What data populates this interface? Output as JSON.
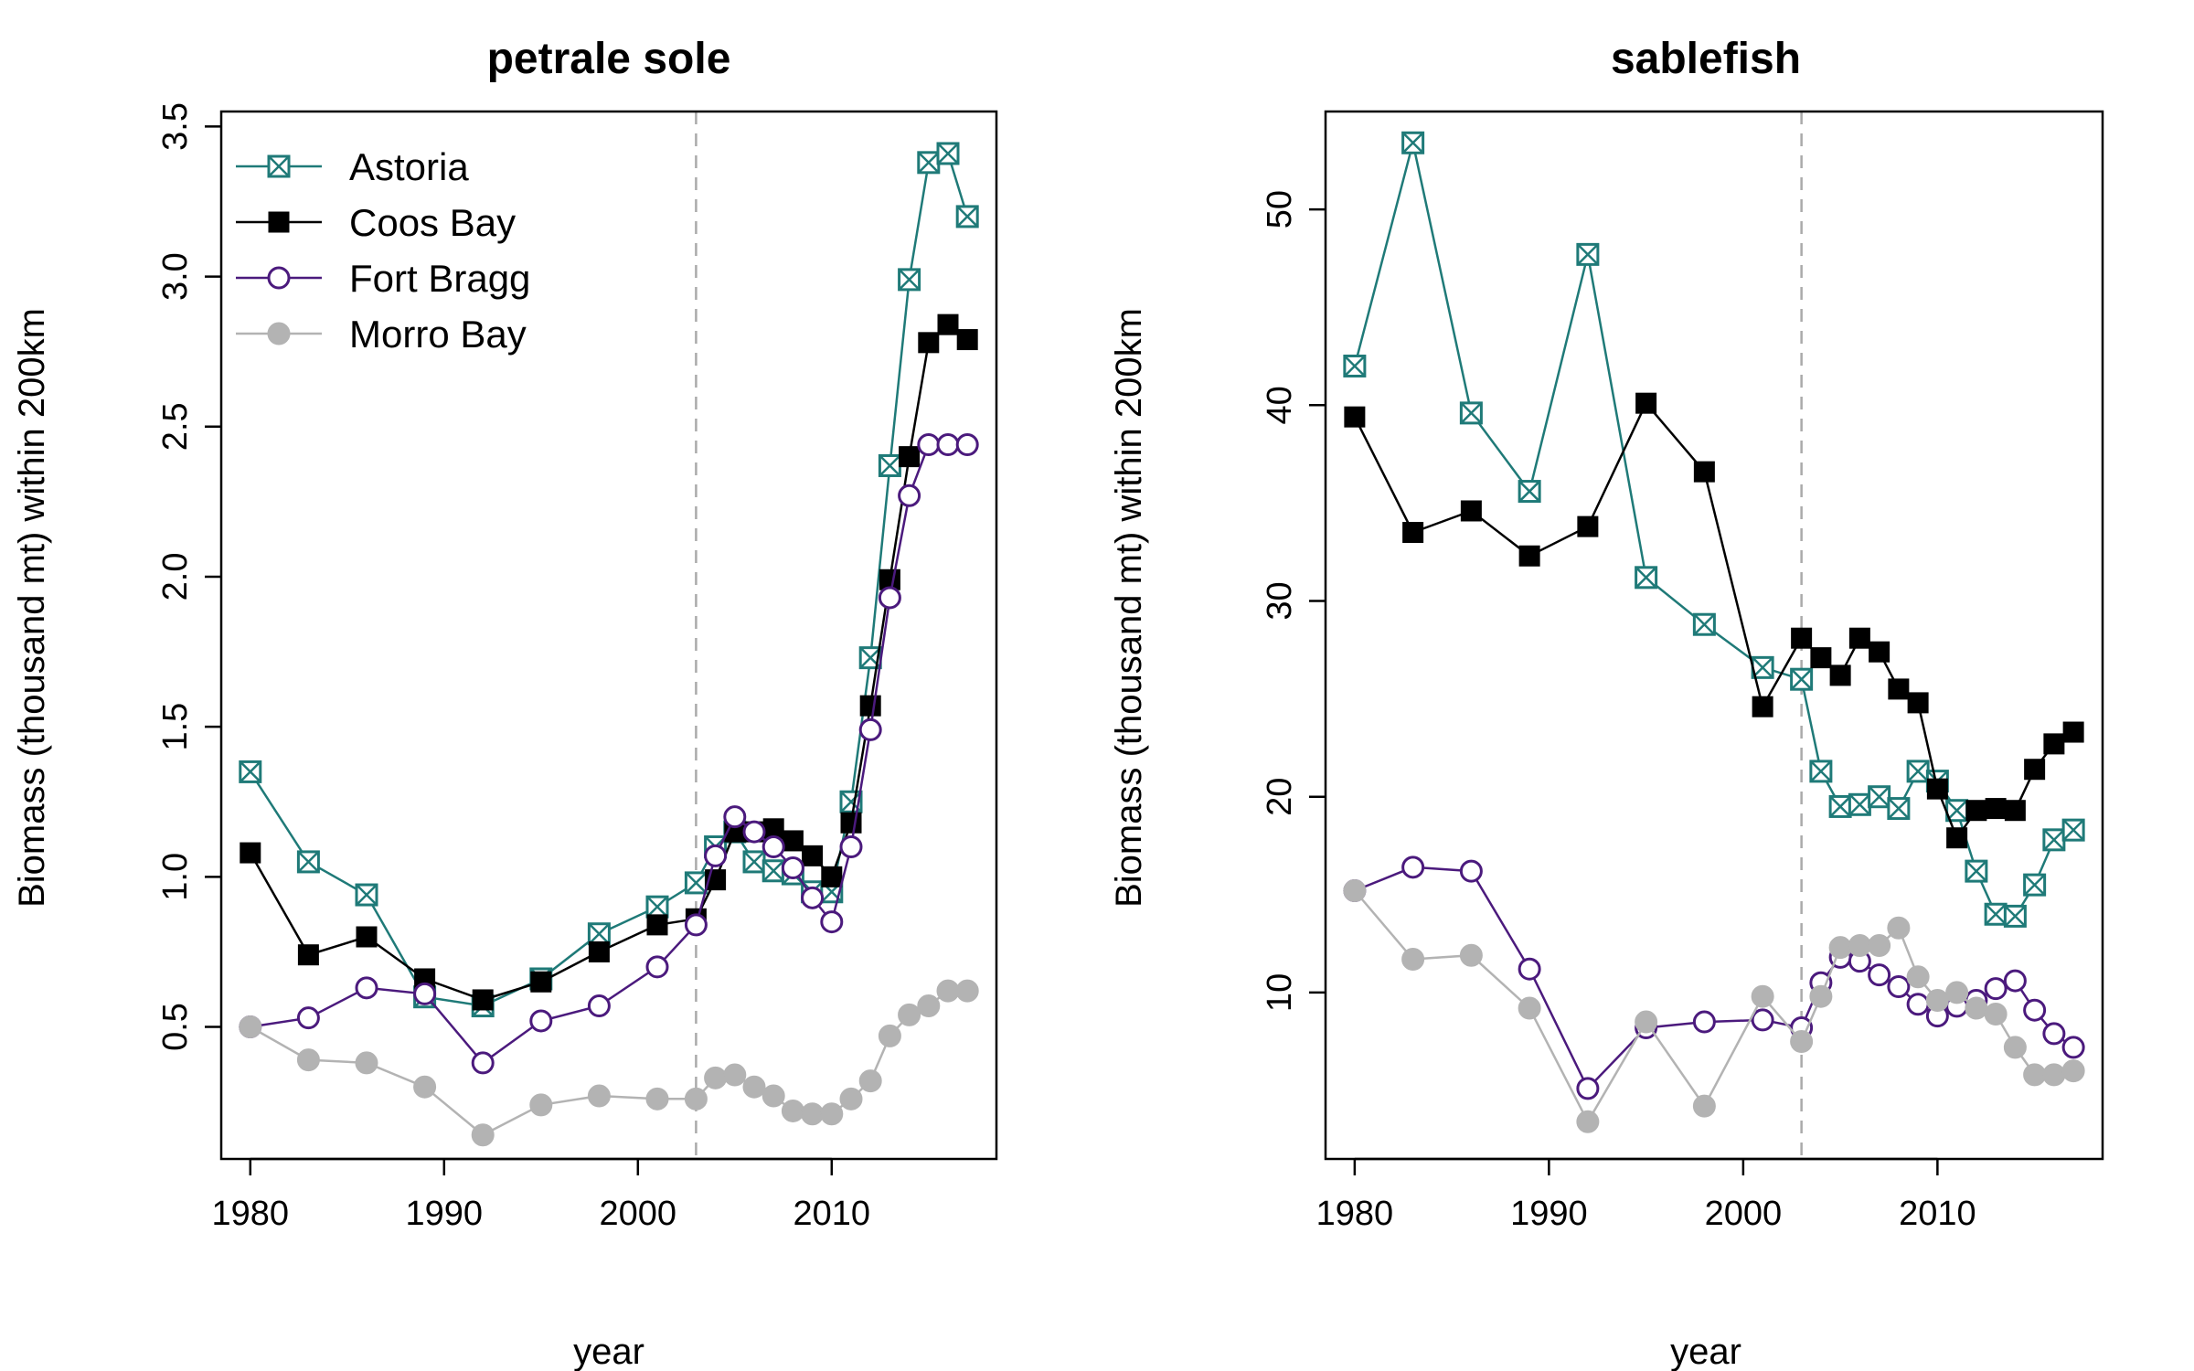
{
  "chart_data": [
    {
      "type": "line",
      "title": "petrale sole",
      "xlabel": "year",
      "ylabel": "Biomass (thousand mt) within 200km",
      "xlim": [
        1978.5,
        2018.5
      ],
      "ylim": [
        0.06,
        3.55
      ],
      "xticks": [
        1980,
        1990,
        2000,
        2010
      ],
      "yticks": [
        0.5,
        1.0,
        1.5,
        2.0,
        2.5,
        3.0,
        3.5
      ],
      "ytick_labels": [
        "0.5",
        "1.0",
        "1.5",
        "2.0",
        "2.5",
        "3.0",
        "3.5"
      ],
      "vline": 2003,
      "legend": {
        "placement": "top-left",
        "show": true
      },
      "series": [
        {
          "name": "Astoria",
          "color": "#1f7a78",
          "marker": "square-x",
          "x": [
            1980,
            1983,
            1986,
            1989,
            1992,
            1995,
            1998,
            2001,
            2003,
            2004,
            2005,
            2006,
            2007,
            2008,
            2009,
            2010,
            2011,
            2012,
            2013,
            2014,
            2015,
            2016,
            2017
          ],
          "y": [
            1.35,
            1.05,
            0.94,
            0.6,
            0.57,
            0.66,
            0.81,
            0.9,
            0.98,
            1.1,
            1.15,
            1.05,
            1.02,
            1.01,
            0.95,
            0.95,
            1.25,
            1.73,
            2.37,
            2.99,
            3.38,
            3.41,
            3.2
          ]
        },
        {
          "name": "Coos Bay",
          "color": "#000000",
          "marker": "square-filled",
          "x": [
            1980,
            1983,
            1986,
            1989,
            1992,
            1995,
            1998,
            2001,
            2003,
            2004,
            2005,
            2006,
            2007,
            2008,
            2009,
            2010,
            2011,
            2012,
            2013,
            2014,
            2015,
            2016,
            2017
          ],
          "y": [
            1.08,
            0.74,
            0.8,
            0.66,
            0.59,
            0.65,
            0.75,
            0.84,
            0.86,
            0.99,
            1.15,
            1.15,
            1.16,
            1.12,
            1.07,
            1.0,
            1.18,
            1.57,
            1.99,
            2.4,
            2.78,
            2.84,
            2.79
          ]
        },
        {
          "name": "Fort Bragg",
          "color": "#4b1a7d",
          "marker": "circle-open",
          "x": [
            1980,
            1983,
            1986,
            1989,
            1992,
            1995,
            1998,
            2001,
            2003,
            2004,
            2005,
            2006,
            2007,
            2008,
            2009,
            2010,
            2011,
            2012,
            2013,
            2014,
            2015,
            2016,
            2017
          ],
          "y": [
            0.5,
            0.53,
            0.63,
            0.61,
            0.38,
            0.52,
            0.57,
            0.7,
            0.84,
            1.07,
            1.2,
            1.15,
            1.1,
            1.03,
            0.93,
            0.85,
            1.1,
            1.49,
            1.93,
            2.27,
            2.44,
            2.44,
            2.44
          ]
        },
        {
          "name": "Morro Bay",
          "color": "#b3b3b3",
          "marker": "circle-filled",
          "x": [
            1980,
            1983,
            1986,
            1989,
            1992,
            1995,
            1998,
            2001,
            2003,
            2004,
            2005,
            2006,
            2007,
            2008,
            2009,
            2010,
            2011,
            2012,
            2013,
            2014,
            2015,
            2016,
            2017
          ],
          "y": [
            0.5,
            0.39,
            0.38,
            0.3,
            0.14,
            0.24,
            0.27,
            0.26,
            0.26,
            0.33,
            0.34,
            0.3,
            0.27,
            0.22,
            0.21,
            0.21,
            0.26,
            0.32,
            0.47,
            0.54,
            0.57,
            0.62,
            0.62
          ]
        }
      ]
    },
    {
      "type": "line",
      "title": "sablefish",
      "xlabel": "year",
      "ylabel": "Biomass (thousand mt) within 200km",
      "xlim": [
        1978.5,
        2018.5
      ],
      "ylim": [
        1.5,
        55.0
      ],
      "xticks": [
        1980,
        1990,
        2000,
        2010
      ],
      "yticks": [
        10,
        20,
        30,
        40,
        50
      ],
      "ytick_labels": [
        "10",
        "20",
        "30",
        "40",
        "50"
      ],
      "vline": 2003,
      "legend": {
        "show": false
      },
      "series": [
        {
          "name": "Astoria",
          "color": "#1f7a78",
          "marker": "square-x",
          "x": [
            1980,
            1983,
            1986,
            1989,
            1992,
            1995,
            1998,
            2001,
            2003,
            2004,
            2005,
            2006,
            2007,
            2008,
            2009,
            2010,
            2011,
            2012,
            2013,
            2014,
            2015,
            2016,
            2017
          ],
          "y": [
            42.0,
            53.4,
            39.6,
            35.6,
            47.7,
            31.2,
            28.8,
            26.6,
            26.0,
            21.3,
            19.5,
            19.6,
            20.0,
            19.4,
            21.3,
            20.8,
            19.3,
            16.2,
            14.0,
            13.9,
            15.5,
            17.8,
            18.3
          ]
        },
        {
          "name": "Coos Bay",
          "color": "#000000",
          "marker": "square-filled",
          "x": [
            1980,
            1983,
            1986,
            1989,
            1992,
            1995,
            1998,
            2001,
            2003,
            2004,
            2005,
            2006,
            2007,
            2008,
            2009,
            2010,
            2011,
            2012,
            2013,
            2014,
            2015,
            2016,
            2017
          ],
          "y": [
            39.4,
            33.5,
            34.6,
            32.3,
            33.8,
            40.1,
            36.6,
            24.6,
            28.1,
            27.1,
            26.2,
            28.1,
            27.4,
            25.5,
            24.8,
            20.4,
            17.9,
            19.3,
            19.4,
            19.3,
            21.4,
            22.7,
            23.3
          ]
        },
        {
          "name": "Fort Bragg",
          "color": "#4b1a7d",
          "marker": "circle-open",
          "x": [
            1980,
            1983,
            1986,
            1989,
            1992,
            1995,
            1998,
            2001,
            2003,
            2004,
            2005,
            2006,
            2007,
            2008,
            2009,
            2010,
            2011,
            2012,
            2013,
            2014,
            2015,
            2016,
            2017
          ],
          "y": [
            15.2,
            16.4,
            16.2,
            11.2,
            5.1,
            8.2,
            8.5,
            8.6,
            8.2,
            10.5,
            11.8,
            11.6,
            10.9,
            10.3,
            9.4,
            8.8,
            9.3,
            9.6,
            10.2,
            10.6,
            9.1,
            7.9,
            7.2
          ]
        },
        {
          "name": "Morro Bay",
          "color": "#b3b3b3",
          "marker": "circle-filled",
          "x": [
            1980,
            1983,
            1986,
            1989,
            1992,
            1995,
            1998,
            2001,
            2003,
            2004,
            2005,
            2006,
            2007,
            2008,
            2009,
            2010,
            2011,
            2012,
            2013,
            2014,
            2015,
            2016,
            2017
          ],
          "y": [
            15.2,
            11.7,
            11.9,
            9.2,
            3.4,
            8.5,
            4.2,
            9.8,
            7.5,
            9.8,
            12.3,
            12.4,
            12.4,
            13.3,
            10.8,
            9.6,
            10.0,
            9.2,
            8.9,
            7.2,
            5.8,
            5.8,
            6.0
          ]
        }
      ]
    }
  ]
}
